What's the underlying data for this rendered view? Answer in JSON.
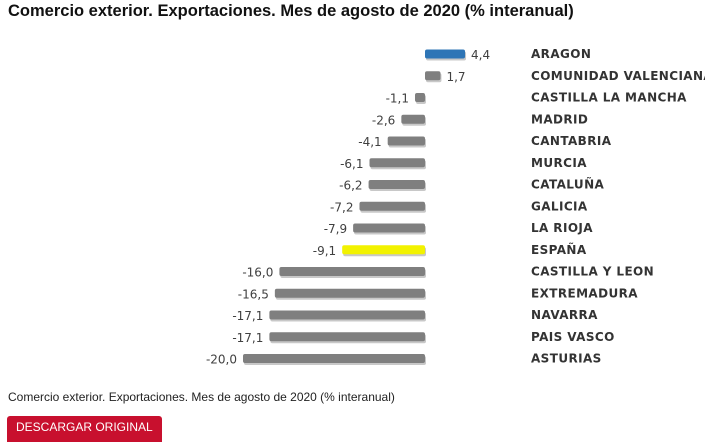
{
  "page": {
    "title": "Comercio exterior. Exportaciones. Mes de agosto de 2020 (% interanual)",
    "caption": "Comercio exterior. Exportaciones. Mes de agosto de 2020 (% interanual)",
    "download_label": "DESCARGAR ORIGINAL"
  },
  "chart_data": {
    "type": "bar",
    "orientation": "horizontal",
    "title": "Comercio exterior. Exportaciones. Mes de agosto de 2020 (% interanual)",
    "xlabel": "",
    "ylabel": "",
    "grid": false,
    "legend": "none",
    "categories": [
      "ARAGON",
      "COMUNIDAD VALENCIANA",
      "CASTILLA LA MANCHA",
      "MADRID",
      "CANTABRIA",
      "MURCIA",
      "CATALUÑA",
      "GALICIA",
      "LA RIOJA",
      "ESPAÑA",
      "CASTILLA Y LEON",
      "EXTREMADURA",
      "NAVARRA",
      "PAIS VASCO",
      "ASTURIAS"
    ],
    "values": [
      4.4,
      1.7,
      -1.1,
      -2.6,
      -4.1,
      -6.1,
      -6.2,
      -7.2,
      -7.9,
      -9.1,
      -16.0,
      -16.5,
      -17.1,
      -17.1,
      -20.0
    ],
    "value_labels": [
      "4,4",
      "1,7",
      "-1,1",
      "-2,6",
      "-4,1",
      "-6,1",
      "-6,2",
      "-7,2",
      "-7,9",
      "-9,1",
      "-16,0",
      "-16,5",
      "-17,1",
      "-17,1",
      "-20,0"
    ],
    "colors": [
      "#2e75b6",
      "#7f7f7f",
      "#7f7f7f",
      "#7f7f7f",
      "#7f7f7f",
      "#7f7f7f",
      "#7f7f7f",
      "#7f7f7f",
      "#7f7f7f",
      "#f2f200",
      "#7f7f7f",
      "#7f7f7f",
      "#7f7f7f",
      "#7f7f7f",
      "#7f7f7f"
    ],
    "xlim": [
      -20,
      5
    ]
  }
}
